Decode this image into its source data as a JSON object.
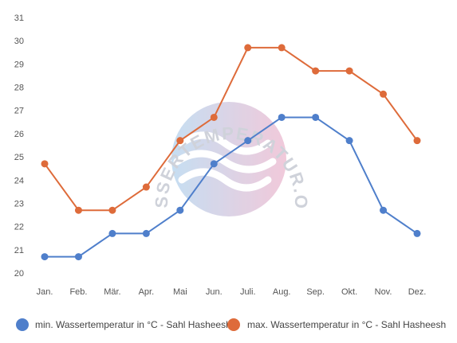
{
  "chart_data": {
    "type": "line",
    "categories": [
      "Jan.",
      "Feb.",
      "Mär.",
      "Apr.",
      "Mai",
      "Jun.",
      "Juli.",
      "Aug.",
      "Sep.",
      "Okt.",
      "Nov.",
      "Dez."
    ],
    "series": [
      {
        "name": "min. Wassertemperatur in °C - Sahl Hasheesh",
        "color": "#4f7fcb",
        "values": [
          20.7,
          20.7,
          21.7,
          21.7,
          22.7,
          24.7,
          25.7,
          26.7,
          26.7,
          25.7,
          22.7,
          21.7
        ]
      },
      {
        "name": "max. Wassertemperatur in °C - Sahl Hasheesh",
        "color": "#de6b3a",
        "values": [
          24.7,
          22.7,
          22.7,
          23.7,
          25.7,
          26.7,
          29.7,
          29.7,
          28.7,
          28.7,
          27.7,
          25.7
        ]
      }
    ],
    "ylim": [
      20,
      31
    ],
    "yticks": [
      "20",
      "21",
      "22",
      "23",
      "24",
      "25",
      "26",
      "27",
      "28",
      "29",
      "30",
      "31"
    ],
    "grid": false,
    "legend": "bottom"
  },
  "watermark": {
    "text": "WASSERTEMPERATUR.ORG",
    "icon": "waves-logo-icon"
  }
}
